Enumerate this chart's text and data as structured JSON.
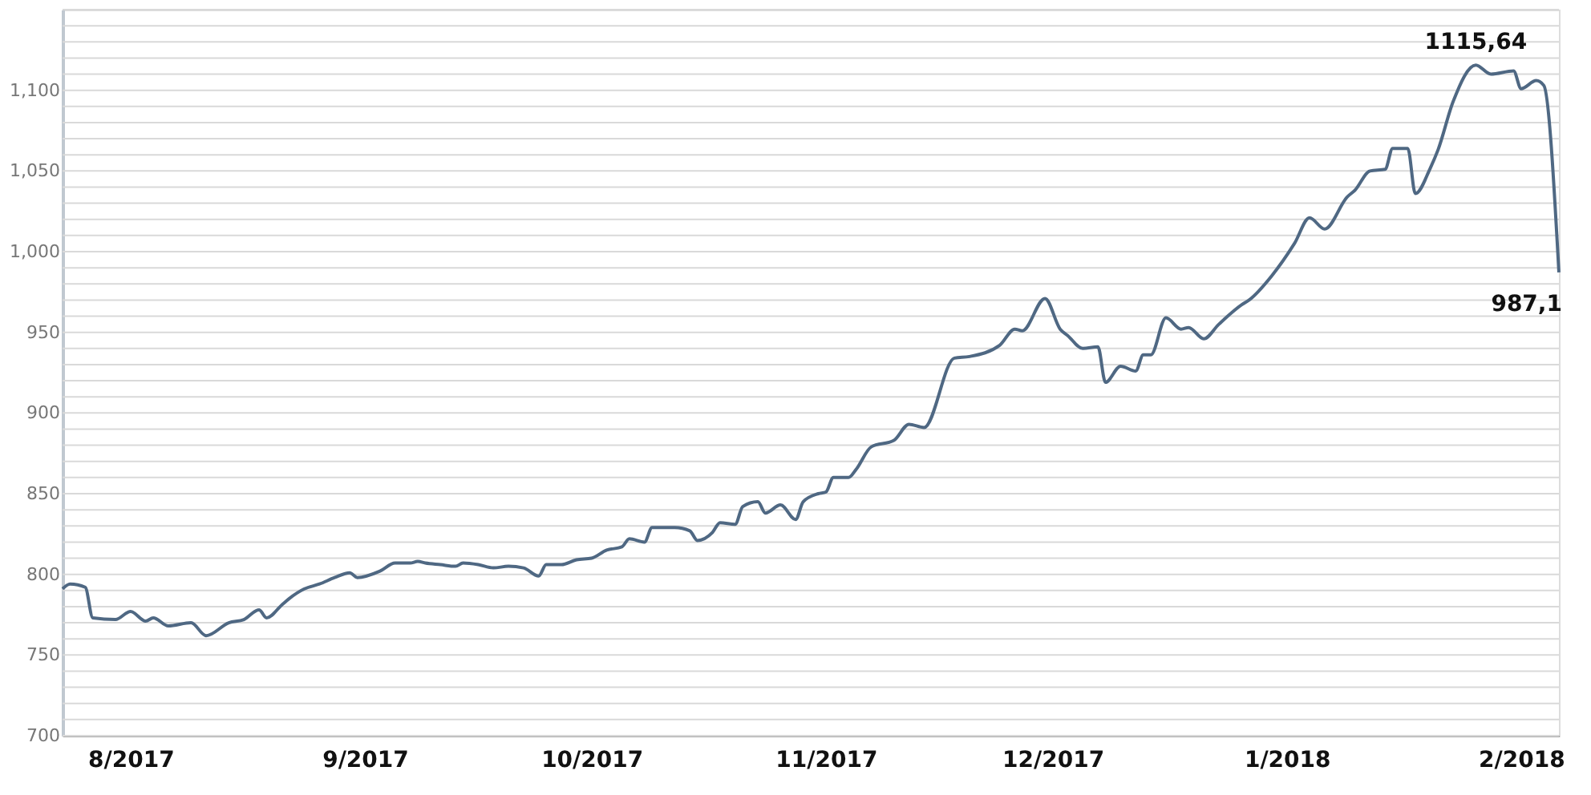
{
  "chart_data": {
    "type": "line",
    "x": [
      "2017-07-23",
      "2017-07-24",
      "2017-07-26",
      "2017-07-27",
      "2017-07-30",
      "2017-08-01",
      "2017-08-03",
      "2017-08-04",
      "2017-08-06",
      "2017-08-09",
      "2017-08-11",
      "2017-08-14",
      "2017-08-16",
      "2017-08-18",
      "2017-08-19",
      "2017-08-21",
      "2017-08-22",
      "2017-08-24",
      "2017-08-26",
      "2017-08-28",
      "2017-08-30",
      "2017-08-31",
      "2017-09-03",
      "2017-09-05",
      "2017-09-07",
      "2017-09-08",
      "2017-09-09",
      "2017-09-11",
      "2017-09-13",
      "2017-09-14",
      "2017-09-16",
      "2017-09-18",
      "2017-09-20",
      "2017-09-22",
      "2017-09-24",
      "2017-09-25",
      "2017-09-27",
      "2017-09-29",
      "2017-10-01",
      "2017-10-03",
      "2017-10-05",
      "2017-10-06",
      "2017-10-08",
      "2017-10-09",
      "2017-10-11",
      "2017-10-12",
      "2017-10-14",
      "2017-10-15",
      "2017-10-17",
      "2017-10-18",
      "2017-10-20",
      "2017-10-21",
      "2017-10-23",
      "2017-10-24",
      "2017-10-26",
      "2017-10-28",
      "2017-10-29",
      "2017-10-31",
      "2017-11-01",
      "2017-11-02",
      "2017-11-04",
      "2017-11-05",
      "2017-11-07",
      "2017-11-10",
      "2017-11-12",
      "2017-11-14",
      "2017-11-18",
      "2017-11-20",
      "2017-11-24",
      "2017-11-26",
      "2017-11-27",
      "2017-11-30",
      "2017-12-02",
      "2017-12-03",
      "2017-12-05",
      "2017-12-07",
      "2017-12-08",
      "2017-12-10",
      "2017-12-12",
      "2017-12-13",
      "2017-12-14",
      "2017-12-16",
      "2017-12-18",
      "2017-12-19",
      "2017-12-21",
      "2017-12-23",
      "2017-12-26",
      "2017-12-27",
      "2017-12-30",
      "2018-01-02",
      "2018-01-04",
      "2018-01-06",
      "2018-01-09",
      "2018-01-10",
      "2018-01-12",
      "2018-01-14",
      "2018-01-15",
      "2018-01-17",
      "2018-01-18",
      "2018-01-20",
      "2018-01-21",
      "2018-01-23",
      "2018-01-26",
      "2018-01-28",
      "2018-01-31",
      "2018-02-01",
      "2018-02-03",
      "2018-02-04",
      "2018-02-06"
    ],
    "series": [
      {
        "color": "#4f6883",
        "values": [
          791,
          794,
          792,
          773,
          772,
          777,
          771,
          773,
          768,
          770,
          762,
          770,
          772,
          778,
          773,
          781,
          785,
          791,
          794,
          798,
          801,
          798,
          802,
          807,
          807,
          808,
          807,
          806,
          805,
          807,
          806,
          804,
          805,
          804,
          799,
          806,
          806,
          809,
          810,
          815,
          817,
          822,
          820,
          829,
          829,
          829,
          827,
          821,
          826,
          832,
          831,
          842,
          845,
          838,
          843,
          834,
          845,
          850,
          851,
          860,
          860,
          865,
          879,
          883,
          893,
          891,
          934,
          935,
          942,
          952,
          951,
          971,
          952,
          948,
          940,
          941,
          919,
          929,
          926,
          936,
          936,
          959,
          952,
          953,
          946,
          955,
          967,
          970,
          985,
          1005,
          1021,
          1014,
          1034,
          1038,
          1050,
          1051,
          1064,
          1064,
          1036,
          1052,
          1063,
          1093,
          1115.64,
          1110,
          1112,
          1101,
          1106,
          1103,
          987.1
        ]
      }
    ],
    "xlim": [
      "2017-07-23",
      "2018-02-06"
    ],
    "xticks": [
      {
        "value": "2017-08-01",
        "label": "8/2017"
      },
      {
        "value": "2017-09-01",
        "label": "9/2017"
      },
      {
        "value": "2017-10-01",
        "label": "10/2017"
      },
      {
        "value": "2017-11-01",
        "label": "11/2017"
      },
      {
        "value": "2017-12-01",
        "label": "12/2017"
      },
      {
        "value": "2018-01-01",
        "label": "1/2018"
      },
      {
        "value": "2018-02-01",
        "label": "2/2018"
      }
    ],
    "ylim": [
      700,
      1150
    ],
    "yticks": [
      700,
      {
        "value": 710,
        "label": null
      },
      {
        "value": 720,
        "label": null
      },
      {
        "value": 730,
        "label": null
      },
      {
        "value": 740,
        "label": null
      },
      750,
      {
        "value": 760,
        "label": null
      },
      {
        "value": 770,
        "label": null
      },
      {
        "value": 780,
        "label": null
      },
      {
        "value": 790,
        "label": null
      },
      800,
      {
        "value": 810,
        "label": null
      },
      {
        "value": 820,
        "label": null
      },
      {
        "value": 830,
        "label": null
      },
      {
        "value": 840,
        "label": null
      },
      850,
      {
        "value": 860,
        "label": null
      },
      {
        "value": 870,
        "label": null
      },
      {
        "value": 880,
        "label": null
      },
      {
        "value": 890,
        "label": null
      },
      900,
      {
        "value": 910,
        "label": null
      },
      {
        "value": 920,
        "label": null
      },
      {
        "value": 930,
        "label": null
      },
      {
        "value": 940,
        "label": null
      },
      950,
      {
        "value": 960,
        "label": null
      },
      {
        "value": 970,
        "label": null
      },
      {
        "value": 980,
        "label": null
      },
      {
        "value": 990,
        "label": null
      },
      {
        "value": 1000,
        "label": "1,000"
      },
      {
        "value": 1010,
        "label": null
      },
      {
        "value": 1020,
        "label": null
      },
      {
        "value": 1030,
        "label": null
      },
      {
        "value": 1040,
        "label": null
      },
      {
        "value": 1050,
        "label": "1,050"
      },
      {
        "value": 1060,
        "label": null
      },
      {
        "value": 1070,
        "label": null
      },
      {
        "value": 1080,
        "label": null
      },
      {
        "value": 1090,
        "label": null
      },
      {
        "value": 1100,
        "label": "1,100"
      },
      {
        "value": 1110,
        "label": null
      },
      {
        "value": 1120,
        "label": null
      },
      {
        "value": 1130,
        "label": null
      },
      {
        "value": 1140,
        "label": null
      },
      {
        "value": 1150,
        "label": null
      }
    ],
    "grid": "y",
    "line_style": "solid",
    "marker": "none",
    "annotations": [
      {
        "text": "1115,64",
        "x": "2018-01-26",
        "y": 1115.64
      },
      {
        "text": "987,1",
        "x": "2018-02-06",
        "y": 987.1
      }
    ]
  }
}
